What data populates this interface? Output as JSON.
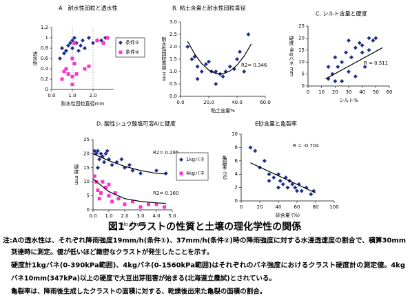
{
  "chart_data": [
    {
      "type": "scatter",
      "title": "A　耐水性団粒と透水性",
      "x_label": "耐水性団粒直径mm",
      "y_label": "透水性",
      "xlim": [
        0,
        3
      ],
      "xticks": [
        {
          "value": 0,
          "label": "0.0"
        },
        {
          "value": 1,
          "label": "1.0"
        },
        {
          "value": 2,
          "label": "2.0"
        }
      ],
      "ylim": [
        0,
        1.2
      ],
      "yticks": [
        0,
        0.2,
        0.4,
        0.6,
        0.8,
        1,
        1.2
      ],
      "xgrid": true,
      "legend": "right",
      "series": [
        {
          "name": "条件①",
          "color": "#1f2f8a",
          "marker": "diamond",
          "x": [
            0.4,
            0.5,
            0.6,
            0.7,
            0.8,
            1.0,
            1.0,
            1.1,
            1.2,
            1.3,
            1.5,
            1.6,
            1.8,
            2.0,
            2.2,
            2.4,
            2.6,
            2.7,
            0.9,
            1.4
          ],
          "values": [
            0.6,
            0.8,
            0.7,
            0.75,
            0.85,
            0.95,
            0.8,
            1.0,
            0.9,
            0.75,
            0.95,
            0.8,
            1.0,
            0.9,
            0.95,
            0.95,
            1.0,
            1.0,
            0.9,
            0.85
          ]
        },
        {
          "name": "条件②",
          "color": "#ff33cc",
          "marker": "square",
          "x": [
            0.5,
            0.6,
            0.7,
            1.0,
            1.0,
            1.1,
            1.0,
            1.2,
            1.6,
            1.8,
            2.2,
            2.5,
            2.7,
            0.8,
            1.1
          ],
          "values": [
            0.2,
            0.35,
            0.4,
            0.1,
            0.25,
            0.5,
            0.6,
            0.3,
            0.4,
            0.45,
            0.95,
            0.9,
            1.0,
            0.3,
            0.9
          ]
        }
      ]
    },
    {
      "type": "scatter",
      "title": "B. 粘土含量と耐水性団粒直径",
      "x_label": "粘土含量%",
      "y_label": "耐水性団粒直径 mm",
      "xlim": [
        0,
        60
      ],
      "xticks": [
        {
          "value": 0,
          "label": "0.0"
        },
        {
          "value": 20,
          "label": "20.0"
        },
        {
          "value": 40,
          "label": "40.0"
        },
        {
          "value": 60,
          "label": "60.0"
        }
      ],
      "ylim": [
        0,
        3
      ],
      "yticks": [
        {
          "value": 0,
          "label": "0.0"
        },
        {
          "value": 0.5,
          "label": "0.5"
        },
        {
          "value": 1,
          "label": "1.0"
        },
        {
          "value": 1.5,
          "label": "1.5"
        },
        {
          "value": 2,
          "label": "2.0"
        },
        {
          "value": 2.5,
          "label": "2.5"
        },
        {
          "value": 3,
          "label": "3.0"
        }
      ],
      "annotations": [
        "R2= 0.346"
      ],
      "series": [
        {
          "color": "#1f2f8a",
          "marker": "diamond",
          "x": [
            5,
            8,
            10,
            12,
            15,
            18,
            20,
            22,
            25,
            28,
            30,
            32,
            35,
            38,
            40,
            42,
            45,
            48,
            12,
            25
          ],
          "values": [
            2.0,
            1.5,
            1.6,
            1.2,
            1.0,
            1.3,
            1.4,
            1.0,
            1.0,
            0.9,
            0.8,
            1.0,
            1.2,
            1.1,
            1.5,
            1.8,
            1.0,
            2.5,
            0.7,
            0.5
          ]
        }
      ],
      "trendlines": [
        {
          "x": [
            5,
            10,
            15,
            20,
            25,
            30,
            35,
            40,
            45,
            50
          ],
          "values": [
            2.22,
            1.71,
            1.32,
            1.06,
            0.92,
            0.91,
            1.02,
            1.26,
            1.62,
            2.11
          ]
        }
      ]
    },
    {
      "type": "scatter",
      "title": "C. シルト含量と硬度",
      "x_label": "シルト%",
      "y_label": "硬度 4kgバネ mm",
      "xlim": [
        0,
        60
      ],
      "xticks": [
        0,
        10,
        20,
        30,
        40,
        50,
        60
      ],
      "ylim": [
        0,
        25
      ],
      "yticks": [
        0,
        5,
        10,
        15,
        20,
        25
      ],
      "annotations": [
        "R = 0.511"
      ],
      "series": [
        {
          "color": "#1f2f8a",
          "marker": "diamond",
          "x": [
            15,
            18,
            20,
            22,
            25,
            28,
            30,
            32,
            35,
            38,
            40,
            42,
            45,
            48,
            50,
            25,
            20,
            35,
            30,
            40,
            15,
            45
          ],
          "values": [
            3,
            5,
            2,
            8,
            10,
            14,
            6,
            12,
            16,
            18,
            17,
            8,
            20,
            19,
            20,
            2,
            12,
            4,
            19,
            14,
            8,
            15
          ]
        }
      ],
      "trendlines": [
        {
          "x": [
            13,
            55
          ],
          "values": [
            3,
            16
          ]
        }
      ]
    },
    {
      "type": "scatter",
      "title": "D. 酸性シュウ酸塩可溶Alと硬度",
      "x_label": "Alo g kg-1",
      "y_label": "硬度 mm",
      "xlim": [
        0,
        5
      ],
      "xticks": [
        {
          "value": 0,
          "label": "0.0"
        },
        {
          "value": 1,
          "label": "1.0"
        },
        {
          "value": 2,
          "label": "2.0"
        },
        {
          "value": 3,
          "label": "3.0"
        },
        {
          "value": 4,
          "label": "4.0"
        },
        {
          "value": 5,
          "label": "5.0"
        }
      ],
      "ylim": [
        0,
        25
      ],
      "yticks": [
        0,
        5,
        10,
        15,
        20,
        25
      ],
      "legend": "right",
      "annotations": [
        "R2= 0.295",
        "R2= 0.160"
      ],
      "series": [
        {
          "name": "1kgバネ",
          "color": "#1f2f8a",
          "marker": "diamond",
          "x": [
            0.1,
            0.2,
            0.3,
            0.4,
            0.5,
            0.6,
            0.7,
            0.8,
            1.0,
            1.2,
            1.5,
            2.0,
            2.5,
            3.0,
            4.0,
            4.6,
            0.3,
            0.9,
            1.8,
            2.3
          ],
          "values": [
            21,
            20,
            21,
            18,
            20,
            19,
            17,
            20,
            18,
            16,
            17,
            15,
            14,
            13,
            14,
            13,
            15,
            21,
            18,
            16
          ]
        },
        {
          "name": "4kgバネ",
          "color": "#ff33cc",
          "marker": "square",
          "x": [
            0.1,
            0.2,
            0.3,
            0.5,
            0.6,
            0.8,
            1.0,
            1.2,
            1.4,
            1.6,
            2.0,
            2.5,
            3.0,
            3.5,
            4.0,
            4.5,
            0.4,
            1.0
          ],
          "values": [
            12,
            10,
            7,
            6,
            10,
            8,
            5,
            3,
            6,
            4,
            2,
            3,
            1,
            2,
            2,
            1,
            4,
            9
          ]
        }
      ],
      "trendlines": [
        {
          "x": [
            0,
            1,
            2,
            3,
            4,
            4.6
          ],
          "values": [
            20,
            17.5,
            15.5,
            14,
            13,
            12.8
          ]
        },
        {
          "x": [
            0,
            1,
            2,
            3,
            4,
            4.6
          ],
          "values": [
            11,
            6.5,
            4,
            3,
            2.5,
            2.3
          ]
        }
      ]
    },
    {
      "type": "scatter",
      "title": "E砂含量と亀裂率",
      "x_label": "砂含量 (%)",
      "y_label": "亀裂率 (%)",
      "xlim": [
        0,
        100
      ],
      "xticks": [
        0,
        20,
        40,
        60,
        80,
        100
      ],
      "ylim": [
        0,
        10
      ],
      "yticks": [
        0,
        2,
        4,
        6,
        8,
        10
      ],
      "annotations": [
        "R = -0.704"
      ],
      "series": [
        {
          "color": "#1f2f8a",
          "marker": "diamond",
          "x": [
            10,
            15,
            20,
            25,
            30,
            35,
            40,
            42,
            45,
            48,
            50,
            52,
            55,
            58,
            60,
            62,
            65,
            70,
            75,
            78,
            40,
            30
          ],
          "values": [
            8,
            7.5,
            5,
            6,
            4,
            3.5,
            4,
            3,
            2.5,
            3.5,
            2,
            3,
            2.5,
            2,
            1.5,
            2.5,
            1.5,
            2,
            1,
            1.5,
            2,
            3
          ]
        }
      ],
      "trendlines": [
        {
          "x": [
            10,
            80
          ],
          "values": [
            5.7,
            1.2
          ]
        }
      ]
    }
  ],
  "caption": {
    "title": "図1 クラストの性質と土壌の理化学性の関係",
    "notes": [
      "注:Aの透水性は、それぞれ降雨強度19mm/h(条件①)、37mm/h(条件②)時の降雨強度に対する水浸透速度の割合で、積算30mm",
      "到達時に測定。値が低いほど緻密なクラストが発生したことを示す。",
      "硬度計1kgバネ(0-390kPa範囲)、4kgバネ(0-1560kPa範囲)はそれぞれのバネ強度におけるクラスト硬度計の測定値。4kg",
      "バネ10mm(347kPa)以上の硬度で大豆出芽阻害が始まる(北海道立農試)とされている。",
      "亀裂率は、降雨後生成したクラストの面積に対する、乾燥後出来た亀裂の面積の割合。"
    ]
  }
}
